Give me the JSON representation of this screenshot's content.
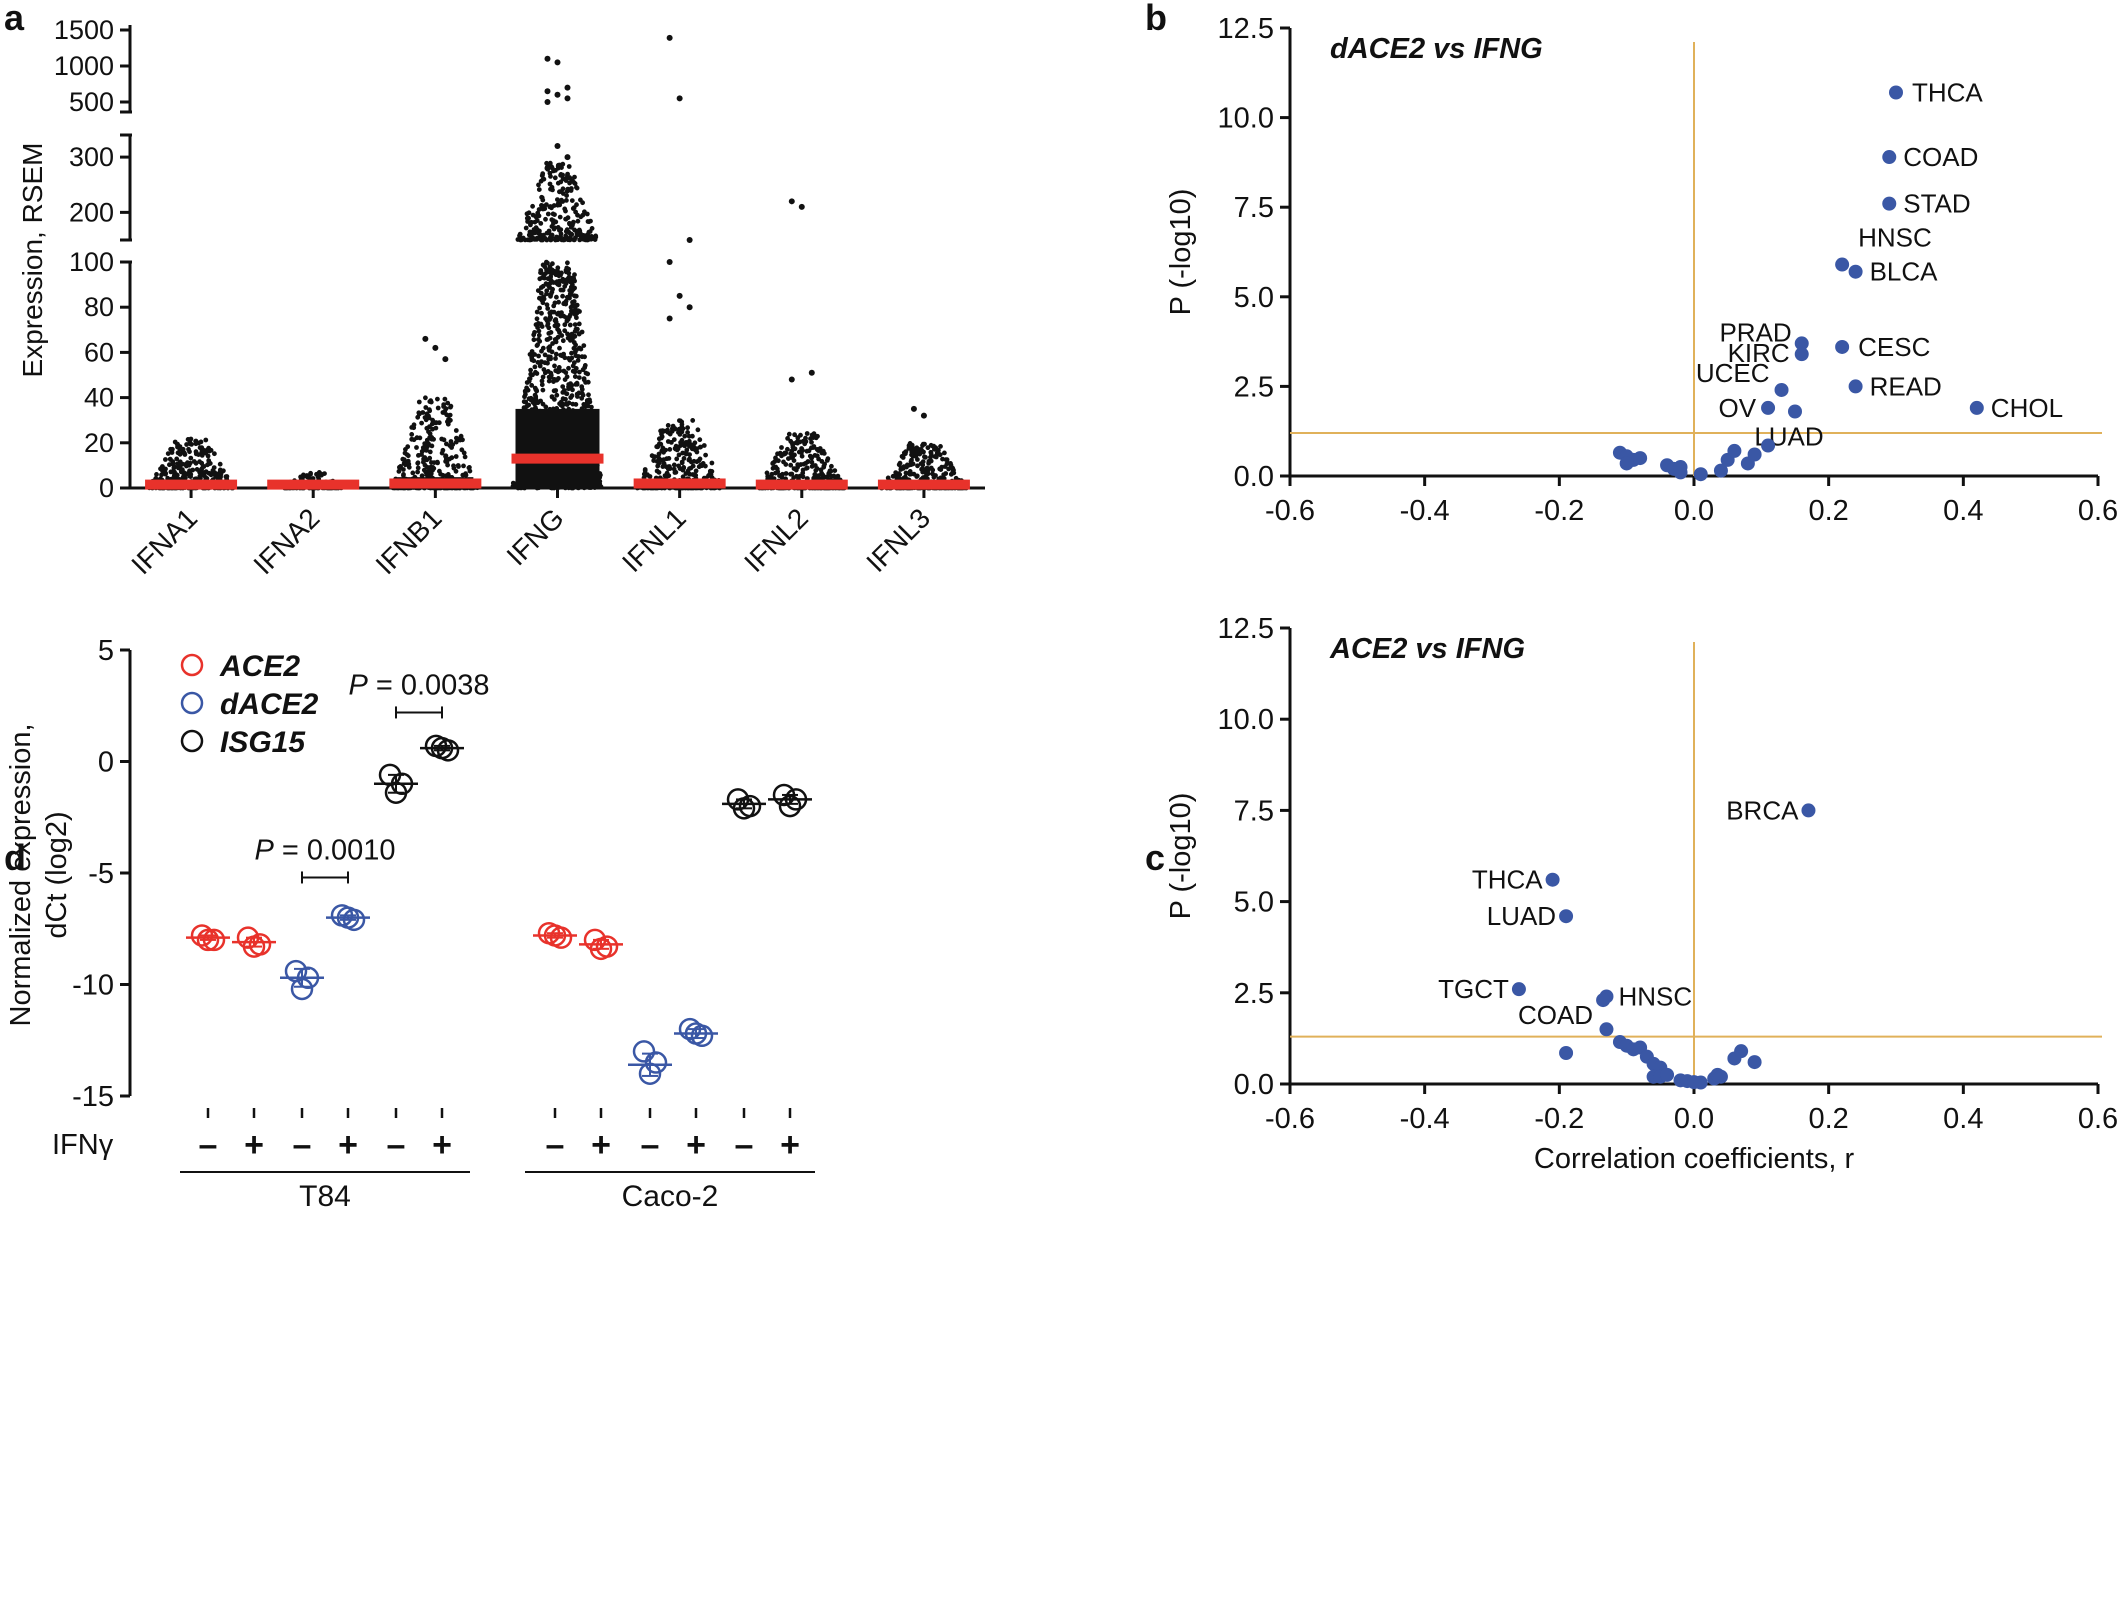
{
  "chart_data": [
    {
      "panel": "a",
      "type": "scatter",
      "subtype": "strip-dot-plot with median bars",
      "ylabel": "Expression, RSEM",
      "y_segments": [
        [
          0,
          100
        ],
        [
          150,
          340
        ],
        [
          340,
          1600
        ]
      ],
      "yticks": [
        "0",
        "20",
        "40",
        "60",
        "80",
        "100",
        "200",
        "300",
        "500",
        "1000",
        "1500"
      ],
      "categories": [
        "IFNA1",
        "IFNA2",
        "IFNB1",
        "IFNG",
        "IFNL1",
        "IFNL2",
        "IFNL3"
      ],
      "medians": [
        1.5,
        1.5,
        2,
        13,
        2,
        1.5,
        1.5
      ],
      "spread_max": [
        22,
        7,
        40,
        100,
        30,
        25,
        20
      ],
      "high_outliers": [
        [],
        [],
        [
          66,
          62,
          57
        ],
        [
          1100,
          1050,
          700,
          650,
          600,
          550,
          500,
          320,
          300,
          280
        ],
        [
          1390,
          550,
          140,
          100,
          85,
          80,
          75
        ],
        [
          220,
          210,
          51,
          48
        ],
        [
          35,
          32
        ]
      ],
      "median_color": "#e8322b"
    },
    {
      "panel": "b",
      "type": "scatter",
      "title": "dACE2 vs IFNG",
      "ylabel": "P (-log10)",
      "xlim": [
        -0.6,
        0.6
      ],
      "ylim": [
        0,
        12.5
      ],
      "xticks": [
        "-0.6",
        "-0.4",
        "-0.2",
        "0.0",
        "0.2",
        "0.4",
        "0.6"
      ],
      "yticks": [
        "0.0",
        "2.5",
        "5.0",
        "7.5",
        "10.0",
        "12.5"
      ],
      "significance_line": 1.2,
      "points": [
        {
          "label": "THCA",
          "x": 0.3,
          "y": 10.7
        },
        {
          "label": "COAD",
          "x": 0.29,
          "y": 8.9
        },
        {
          "label": "STAD",
          "x": 0.29,
          "y": 7.6
        },
        {
          "label": "HNSC",
          "x": 0.22,
          "y": 5.9
        },
        {
          "label": "BLCA",
          "x": 0.24,
          "y": 5.7
        },
        {
          "label": "PRAD",
          "x": 0.16,
          "y": 3.7
        },
        {
          "label": "KIRC",
          "x": 0.16,
          "y": 3.4
        },
        {
          "label": "CESC",
          "x": 0.22,
          "y": 3.6
        },
        {
          "label": "UCEC",
          "x": 0.13,
          "y": 2.4
        },
        {
          "label": "READ",
          "x": 0.24,
          "y": 2.5
        },
        {
          "label": "CHOL",
          "x": 0.42,
          "y": 1.9
        },
        {
          "label": "OV",
          "x": 0.11,
          "y": 1.9
        },
        {
          "label": "LUAD",
          "x": 0.15,
          "y": 1.8
        },
        {
          "label": "",
          "x": -0.11,
          "y": 0.65
        },
        {
          "label": "",
          "x": -0.1,
          "y": 0.55
        },
        {
          "label": "",
          "x": -0.09,
          "y": 0.45
        },
        {
          "label": "",
          "x": -0.1,
          "y": 0.35
        },
        {
          "label": "",
          "x": -0.08,
          "y": 0.5
        },
        {
          "label": "",
          "x": -0.04,
          "y": 0.3
        },
        {
          "label": "",
          "x": -0.03,
          "y": 0.2
        },
        {
          "label": "",
          "x": -0.02,
          "y": 0.25
        },
        {
          "label": "",
          "x": -0.02,
          "y": 0.1
        },
        {
          "label": "",
          "x": 0.01,
          "y": 0.05
        },
        {
          "label": "",
          "x": 0.04,
          "y": 0.15
        },
        {
          "label": "",
          "x": 0.05,
          "y": 0.45
        },
        {
          "label": "",
          "x": 0.06,
          "y": 0.7
        },
        {
          "label": "",
          "x": 0.08,
          "y": 0.35
        },
        {
          "label": "",
          "x": 0.09,
          "y": 0.6
        },
        {
          "label": "",
          "x": 0.11,
          "y": 0.85
        }
      ],
      "point_color": "#3a57a5",
      "line_color": "#e0b15a"
    },
    {
      "panel": "c",
      "type": "scatter",
      "title": "ACE2 vs IFNG",
      "xlabel": "Correlation coefficients, r",
      "ylabel": "P (-log10)",
      "xlim": [
        -0.6,
        0.6
      ],
      "ylim": [
        0,
        12.5
      ],
      "xticks": [
        "-0.6",
        "-0.4",
        "-0.2",
        "0.0",
        "0.2",
        "0.4",
        "0.6"
      ],
      "yticks": [
        "0.0",
        "2.5",
        "5.0",
        "7.5",
        "10.0",
        "12.5"
      ],
      "significance_line": 1.3,
      "points": [
        {
          "label": "BRCA",
          "x": 0.17,
          "y": 7.5
        },
        {
          "label": "THCA",
          "x": -0.21,
          "y": 5.6
        },
        {
          "label": "LUAD",
          "x": -0.19,
          "y": 4.6
        },
        {
          "label": "TGCT",
          "x": -0.26,
          "y": 2.6
        },
        {
          "label": "HNSC",
          "x": -0.13,
          "y": 2.4
        },
        {
          "label": "COAD",
          "x": -0.135,
          "y": 2.3
        },
        {
          "label": "",
          "x": -0.19,
          "y": 0.85
        },
        {
          "label": "",
          "x": -0.13,
          "y": 1.5
        },
        {
          "label": "",
          "x": -0.11,
          "y": 1.15
        },
        {
          "label": "",
          "x": -0.1,
          "y": 1.05
        },
        {
          "label": "",
          "x": -0.09,
          "y": 0.95
        },
        {
          "label": "",
          "x": -0.08,
          "y": 1.0
        },
        {
          "label": "",
          "x": -0.07,
          "y": 0.75
        },
        {
          "label": "",
          "x": -0.06,
          "y": 0.55
        },
        {
          "label": "",
          "x": -0.05,
          "y": 0.45
        },
        {
          "label": "",
          "x": -0.06,
          "y": 0.2
        },
        {
          "label": "",
          "x": -0.05,
          "y": 0.2
        },
        {
          "label": "",
          "x": -0.04,
          "y": 0.25
        },
        {
          "label": "",
          "x": -0.02,
          "y": 0.1
        },
        {
          "label": "",
          "x": -0.01,
          "y": 0.08
        },
        {
          "label": "",
          "x": 0.0,
          "y": 0.05
        },
        {
          "label": "",
          "x": 0.01,
          "y": 0.04
        },
        {
          "label": "",
          "x": 0.03,
          "y": 0.15
        },
        {
          "label": "",
          "x": 0.035,
          "y": 0.25
        },
        {
          "label": "",
          "x": 0.04,
          "y": 0.2
        },
        {
          "label": "",
          "x": 0.06,
          "y": 0.7
        },
        {
          "label": "",
          "x": 0.07,
          "y": 0.9
        },
        {
          "label": "",
          "x": 0.09,
          "y": 0.6
        }
      ],
      "point_color": "#3a57a5",
      "line_color": "#e0b15a"
    },
    {
      "panel": "d",
      "type": "scatter",
      "subtype": "replicate dot plot with mean and SD",
      "ylabel_line1": "Normalized expression,",
      "ylabel_line2": "dCt (log2)",
      "ylim": [
        -15,
        5
      ],
      "yticks": [
        "5",
        "0",
        "-5",
        "-10",
        "-15"
      ],
      "legend": [
        {
          "name": "ACE2",
          "color": "#e8322b"
        },
        {
          "name": "dACE2",
          "color": "#3a57a5"
        },
        {
          "name": "ISG15",
          "color": "#111111"
        }
      ],
      "row_label": "IFNγ",
      "groups": [
        {
          "cell_line": "T84",
          "gene": "ACE2",
          "ifng": "–",
          "values": [
            -7.8,
            -8.0,
            -8.0
          ],
          "mean": -7.9,
          "sd": 0.1
        },
        {
          "cell_line": "T84",
          "gene": "ACE2",
          "ifng": "+",
          "values": [
            -7.9,
            -8.2,
            -8.3
          ],
          "mean": -8.1,
          "sd": 0.2
        },
        {
          "cell_line": "T84",
          "gene": "dACE2",
          "ifng": "–",
          "values": [
            -9.4,
            -9.7,
            -10.2
          ],
          "mean": -9.7,
          "sd": 0.4
        },
        {
          "cell_line": "T84",
          "gene": "dACE2",
          "ifng": "+",
          "values": [
            -6.9,
            -7.1,
            -7.0
          ],
          "mean": -7.0,
          "sd": 0.1
        },
        {
          "cell_line": "T84",
          "gene": "ISG15",
          "ifng": "–",
          "values": [
            -0.6,
            -1.0,
            -1.4
          ],
          "mean": -1.0,
          "sd": 0.4
        },
        {
          "cell_line": "T84",
          "gene": "ISG15",
          "ifng": "+",
          "values": [
            0.7,
            0.5,
            0.6
          ],
          "mean": 0.6,
          "sd": 0.1
        },
        {
          "cell_line": "Caco-2",
          "gene": "ACE2",
          "ifng": "–",
          "values": [
            -7.7,
            -7.9,
            -7.8
          ],
          "mean": -7.8,
          "sd": 0.1
        },
        {
          "cell_line": "Caco-2",
          "gene": "ACE2",
          "ifng": "+",
          "values": [
            -8.0,
            -8.3,
            -8.4
          ],
          "mean": -8.2,
          "sd": 0.2
        },
        {
          "cell_line": "Caco-2",
          "gene": "dACE2",
          "ifng": "–",
          "values": [
            -13.0,
            -13.5,
            -14.0
          ],
          "mean": -13.6,
          "sd": 0.5
        },
        {
          "cell_line": "Caco-2",
          "gene": "dACE2",
          "ifng": "+",
          "values": [
            -12.0,
            -12.3,
            -12.2
          ],
          "mean": -12.2,
          "sd": 0.2
        },
        {
          "cell_line": "Caco-2",
          "gene": "ISG15",
          "ifng": "–",
          "values": [
            -1.7,
            -2.0,
            -2.1
          ],
          "mean": -1.9,
          "sd": 0.2
        },
        {
          "cell_line": "Caco-2",
          "gene": "ISG15",
          "ifng": "+",
          "values": [
            -1.5,
            -1.7,
            -2.0
          ],
          "mean": -1.7,
          "sd": 0.2
        }
      ],
      "cell_lines": [
        "T84",
        "Caco-2"
      ],
      "pvalues": [
        {
          "label_p": "P",
          "label_rest": " = 0.0010",
          "from_group": 2,
          "to_group": 3,
          "y": -5.2
        },
        {
          "label_p": "P",
          "label_rest": " = 0.0038",
          "from_group": 4,
          "to_group": 5,
          "y": 2.2
        }
      ]
    }
  ],
  "panel_letters": {
    "a": "a",
    "b": "b",
    "c": "c",
    "d": "d"
  }
}
